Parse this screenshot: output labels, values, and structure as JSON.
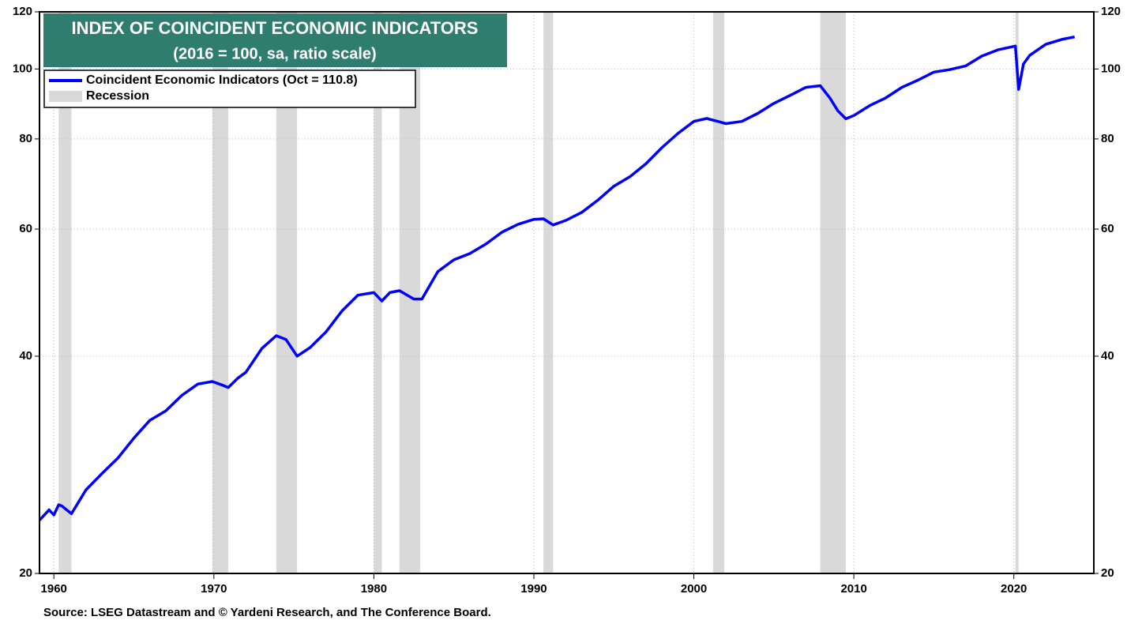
{
  "chart_data": {
    "type": "line",
    "title": "INDEX OF COINCIDENT ECONOMIC INDICATORS",
    "subtitle": "(2016 = 100, sa, ratio scale)",
    "source": "Source: LSEG Datastream and © Yardeni Research, and The Conference Board.",
    "log_scale": true,
    "grid": true,
    "legend": "upper left",
    "x": [
      1959.1,
      1959.7,
      1960.0,
      1960.3,
      1960.5,
      1961.1,
      1962,
      1963,
      1964,
      1965,
      1966,
      1967,
      1968,
      1969,
      1969.9,
      1970.5,
      1970.9,
      1971.5,
      1972,
      1973,
      1973.9,
      1974.5,
      1975.2,
      1976,
      1977,
      1978,
      1979,
      1980,
      1980.5,
      1981,
      1981.6,
      1982.5,
      1983,
      1984,
      1985,
      1986,
      1987,
      1988,
      1989,
      1990,
      1990.6,
      1991.2,
      1992,
      1993,
      1994,
      1995,
      1996,
      1997,
      1998,
      1999,
      2000,
      2000.8,
      2001.5,
      2002,
      2003,
      2004,
      2005,
      2006,
      2007,
      2007.9,
      2008.5,
      2009.0,
      2009.5,
      2010,
      2011,
      2012,
      2013,
      2014,
      2015,
      2016,
      2017,
      2018,
      2019,
      2020.1,
      2020.3,
      2020.6,
      2021,
      2022,
      2023,
      2023.8
    ],
    "series": [
      {
        "name": "Coincident Economic Indicators (Oct = 110.8)",
        "color": "#0000ff",
        "values": [
          23.7,
          24.5,
          24.1,
          24.9,
          24.8,
          24.2,
          26.1,
          27.5,
          28.9,
          30.8,
          32.6,
          33.6,
          35.3,
          36.6,
          36.9,
          36.5,
          36.2,
          37.3,
          38.0,
          41.0,
          42.7,
          42.2,
          40.0,
          41.1,
          43.2,
          46.2,
          48.6,
          49.0,
          47.7,
          49.0,
          49.3,
          48.0,
          48.0,
          52.4,
          54.4,
          55.5,
          57.2,
          59.4,
          60.9,
          61.9,
          62.0,
          60.8,
          61.7,
          63.3,
          65.8,
          68.8,
          70.9,
          73.9,
          77.8,
          81.4,
          84.6,
          85.4,
          84.6,
          84.0,
          84.6,
          86.8,
          89.6,
          91.9,
          94.3,
          94.8,
          91.2,
          87.5,
          85.3,
          86.2,
          89.0,
          91.2,
          94.3,
          96.5,
          99.0,
          99.8,
          101.0,
          104.2,
          106.3,
          107.6,
          93.7,
          101.6,
          104.5,
          108.2,
          109.9,
          110.8
        ]
      }
    ],
    "recession_name": "Recession",
    "recession_color": "#d9d9d9",
    "recessions": [
      [
        1960.3,
        1961.1
      ],
      [
        1969.9,
        1970.9
      ],
      [
        1973.9,
        1975.2
      ],
      [
        1980.0,
        1980.5
      ],
      [
        1981.6,
        1982.9
      ],
      [
        1990.6,
        1991.2
      ],
      [
        2001.2,
        2001.9
      ],
      [
        2007.9,
        2009.5
      ],
      [
        2020.1,
        2020.3
      ]
    ],
    "xlim": [
      1959.1,
      2025
    ],
    "xticks": [
      1960,
      1970,
      1980,
      1990,
      2000,
      2010,
      2020
    ],
    "ylim": [
      20,
      120
    ],
    "yticks": [
      20,
      40,
      60,
      80,
      100,
      120
    ]
  }
}
